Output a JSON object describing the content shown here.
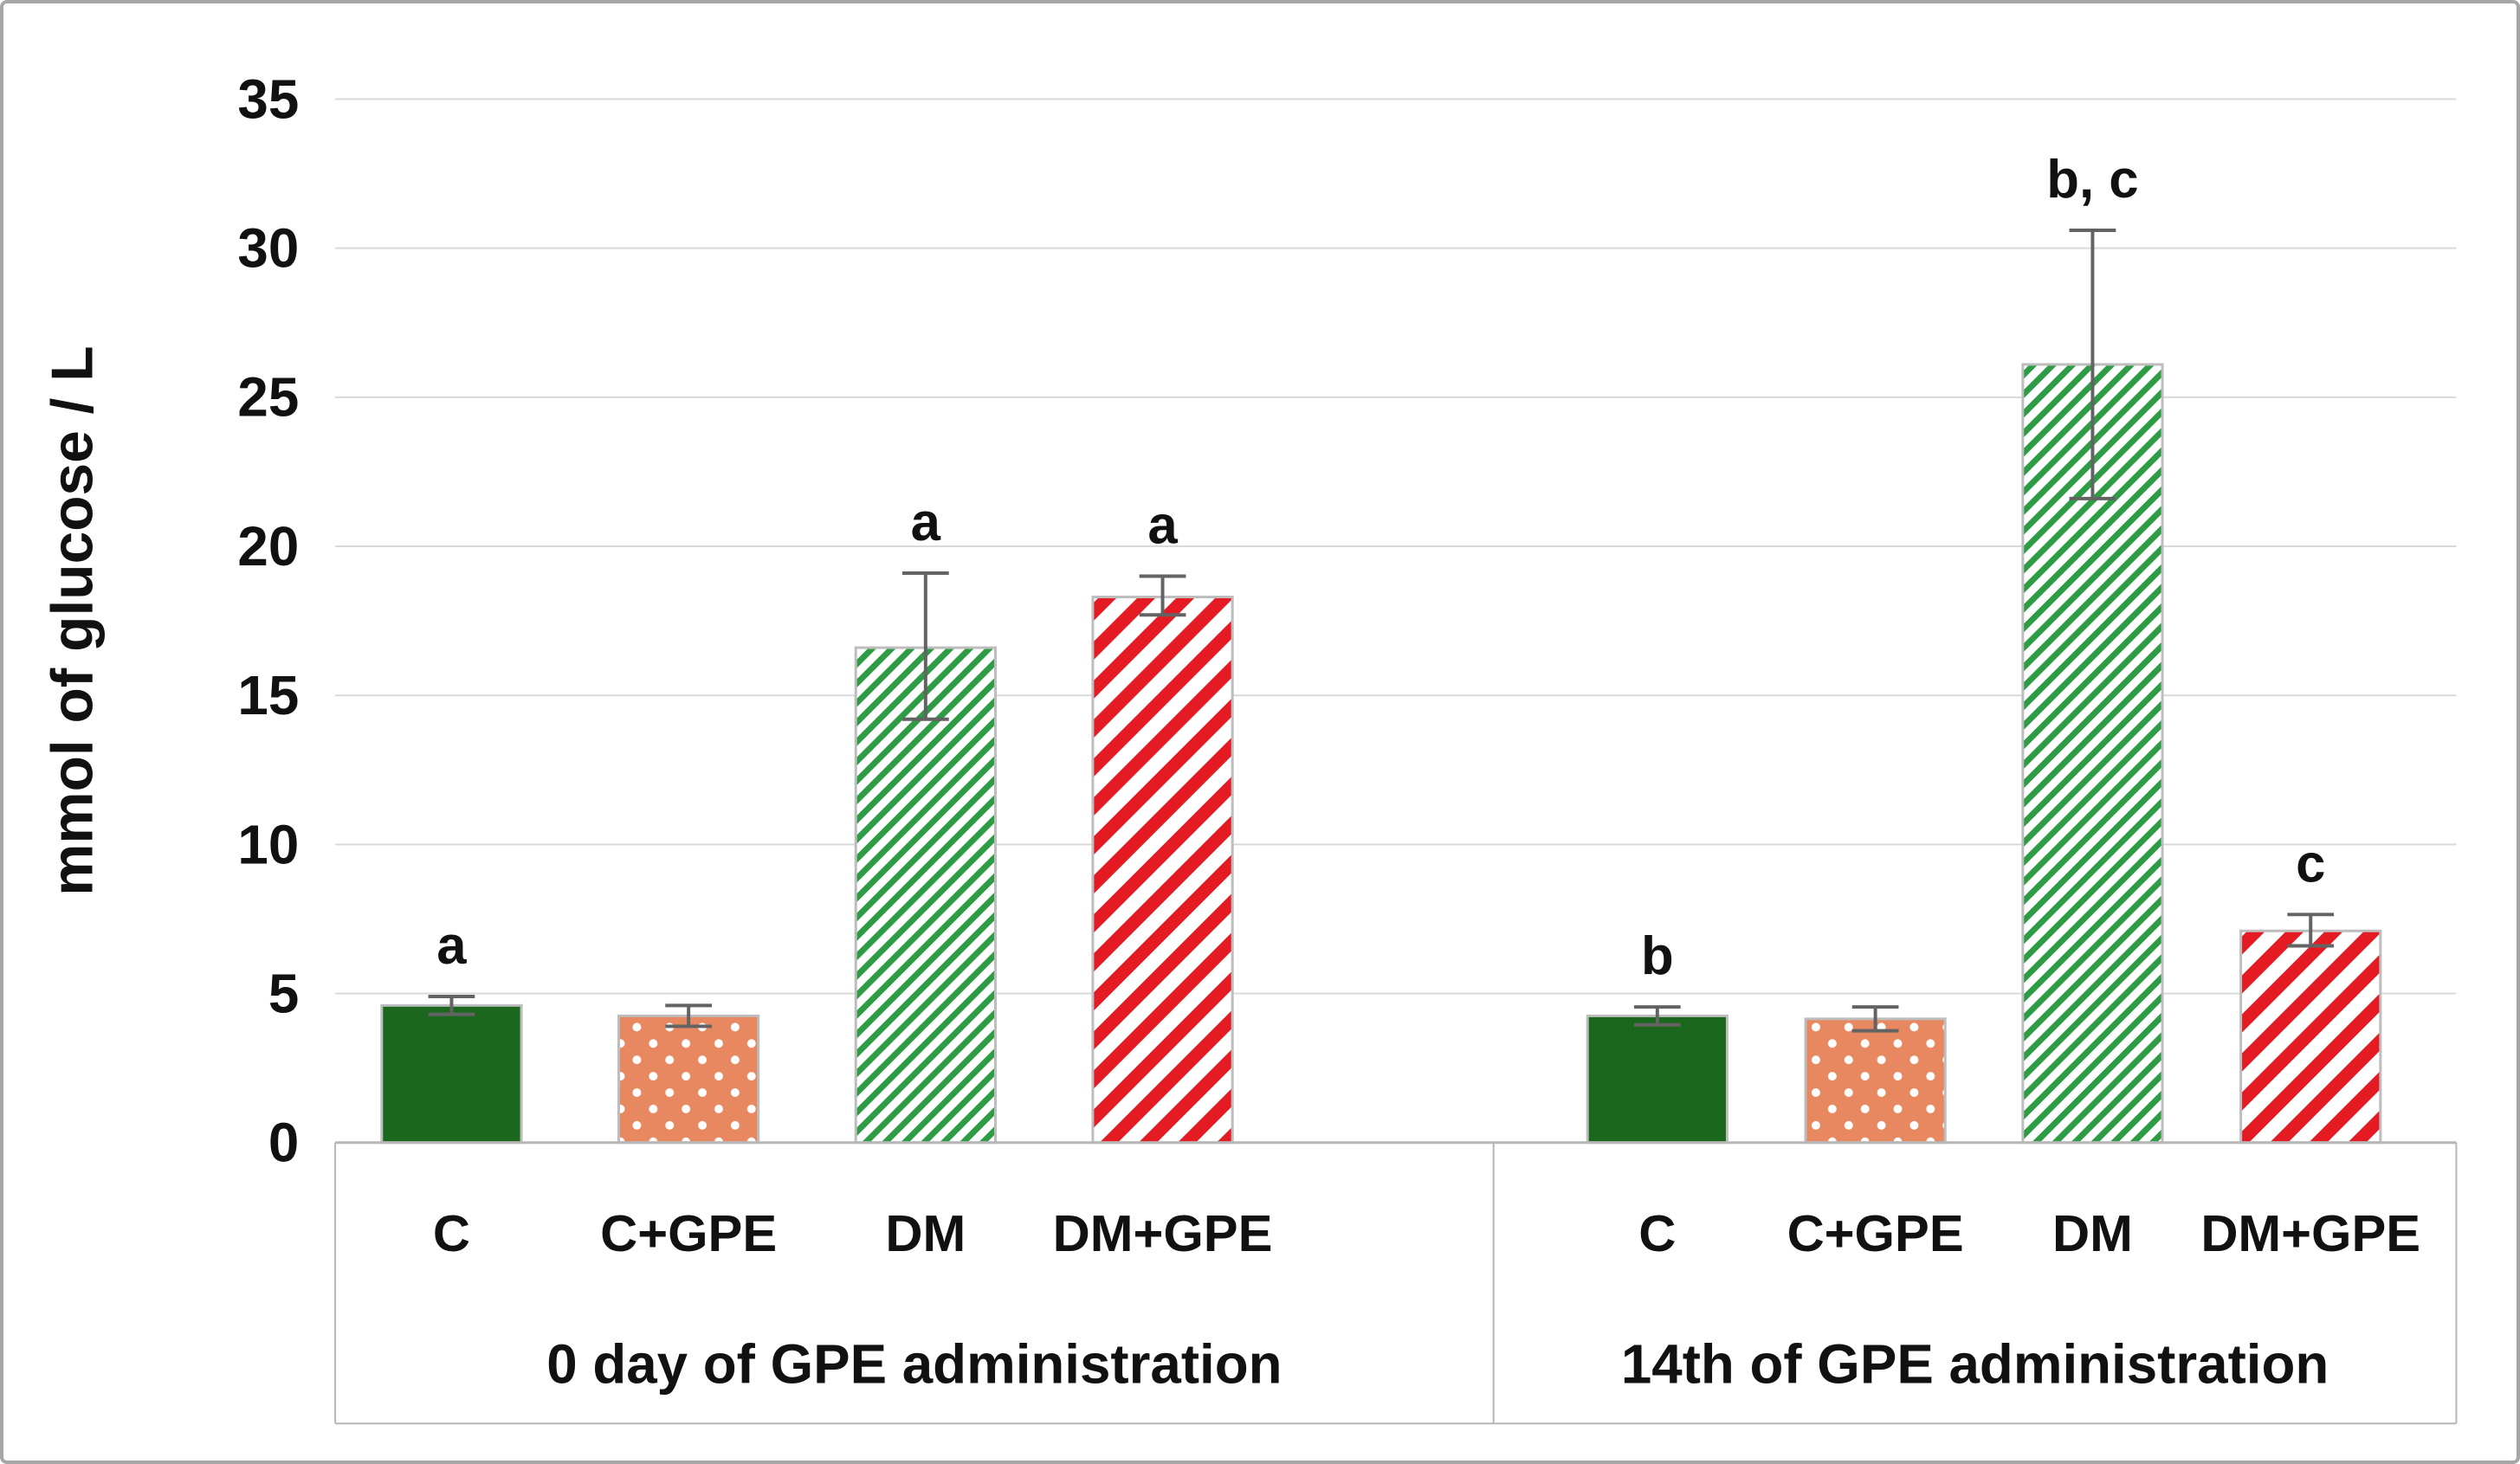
{
  "figure": {
    "background": "#ffffff",
    "border_color": "#a6a6a6"
  },
  "chart_data": {
    "type": "bar",
    "title": "",
    "xlabel": "",
    "ylabel": "mmol of glucose / L",
    "ylim": [
      0,
      35
    ],
    "yticks": [
      0,
      5,
      10,
      15,
      20,
      25,
      30,
      35
    ],
    "grid": true,
    "legend": "none",
    "groups": [
      {
        "label": "0 day of GPE administration",
        "bars": [
          {
            "category": "C",
            "value": 4.6,
            "err_low": 0.3,
            "err_high": 0.3,
            "annotation": "a",
            "style": "solid-green"
          },
          {
            "category": "C+GPE",
            "value": 4.25,
            "err_low": 0.35,
            "err_high": 0.35,
            "annotation": "",
            "style": "orange-dots"
          },
          {
            "category": "DM",
            "value": 16.6,
            "err_low": 2.4,
            "err_high": 2.5,
            "annotation": "a",
            "style": "green-hatch"
          },
          {
            "category": "DM+GPE",
            "value": 18.3,
            "err_low": 0.6,
            "err_high": 0.7,
            "annotation": "a",
            "style": "red-stripes"
          }
        ]
      },
      {
        "label": "14th of GPE administration",
        "bars": [
          {
            "category": "C",
            "value": 4.25,
            "err_low": 0.3,
            "err_high": 0.3,
            "annotation": "b",
            "style": "solid-green"
          },
          {
            "category": "C+GPE",
            "value": 4.15,
            "err_low": 0.4,
            "err_high": 0.4,
            "annotation": "",
            "style": "orange-dots"
          },
          {
            "category": "DM",
            "value": 26.1,
            "err_low": 4.5,
            "err_high": 4.5,
            "annotation": "b, c",
            "style": "green-hatch"
          },
          {
            "category": "DM+GPE",
            "value": 7.1,
            "err_low": 0.5,
            "err_high": 0.55,
            "annotation": "c",
            "style": "red-stripes"
          }
        ]
      }
    ],
    "colors": {
      "solid_green": "#1b671d",
      "orange": "#e78861",
      "dot_white": "#ffffff",
      "green_hatch": "#2e9b45",
      "red_stripe": "#e51b24",
      "bar_border": "#bdbdbd",
      "gridline": "#d9d9d9",
      "axis_line": "#b7b7b7",
      "error_bar": "#636363",
      "text": "#111111"
    }
  }
}
